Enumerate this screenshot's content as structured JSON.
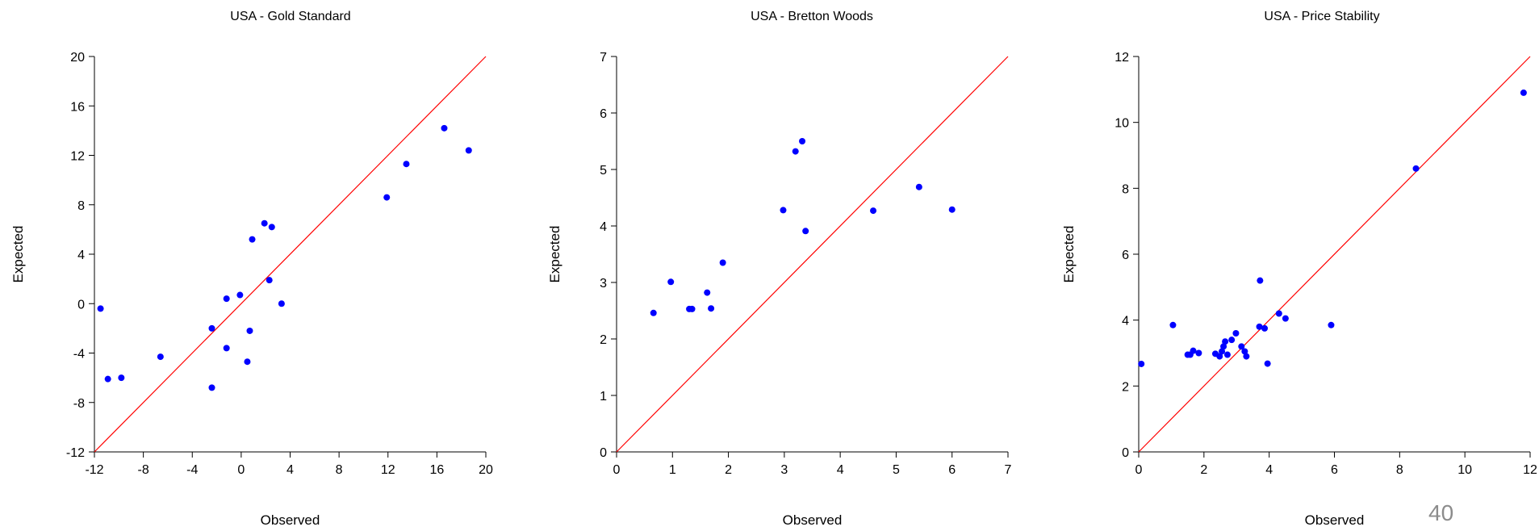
{
  "page_number": "40",
  "colors": {
    "points": "#0000ff",
    "reference_line": "#ff0000",
    "axis": "#000000"
  },
  "chart_data": [
    {
      "type": "scatter",
      "title": "USA - Gold Standard",
      "xlabel": "Observed",
      "ylabel": "Expected",
      "xlim": [
        -12,
        20
      ],
      "ylim": [
        -12,
        20
      ],
      "xticks": [
        -12,
        -8,
        -4,
        0,
        4,
        8,
        12,
        16,
        20
      ],
      "yticks": [
        -12,
        -8,
        -4,
        0,
        4,
        8,
        12,
        16,
        20
      ],
      "xtick_labels": [
        "-12",
        "-8",
        "-4",
        "0",
        "4",
        "8",
        "12",
        "16",
        "20"
      ],
      "ytick_labels": [
        "-12",
        "-8",
        "-4",
        "0",
        "4",
        "8",
        "12",
        "16",
        "20"
      ],
      "grid": false,
      "reference_line": "y = x",
      "points": [
        {
          "x": -11.5,
          "y": -0.4
        },
        {
          "x": -10.9,
          "y": -6.1
        },
        {
          "x": -9.8,
          "y": -6.0
        },
        {
          "x": -6.6,
          "y": -4.3
        },
        {
          "x": -2.4,
          "y": -2.0
        },
        {
          "x": -2.4,
          "y": -6.8
        },
        {
          "x": -1.2,
          "y": 0.4
        },
        {
          "x": -1.2,
          "y": -3.6
        },
        {
          "x": -0.1,
          "y": 0.7
        },
        {
          "x": 0.5,
          "y": -4.7
        },
        {
          "x": 0.7,
          "y": -2.2
        },
        {
          "x": 0.9,
          "y": 5.2
        },
        {
          "x": 1.9,
          "y": 6.5
        },
        {
          "x": 2.3,
          "y": 1.9
        },
        {
          "x": 2.5,
          "y": 6.2
        },
        {
          "x": 3.3,
          "y": 0.0
        },
        {
          "x": 11.9,
          "y": 8.6
        },
        {
          "x": 13.5,
          "y": 11.3
        },
        {
          "x": 16.6,
          "y": 14.2
        },
        {
          "x": 18.6,
          "y": 12.4
        }
      ]
    },
    {
      "type": "scatter",
      "title": "USA - Bretton Woods",
      "xlabel": "Observed",
      "ylabel": "Expected",
      "xlim": [
        0,
        7
      ],
      "ylim": [
        0,
        7
      ],
      "xticks": [
        0,
        1,
        2,
        3,
        4,
        5,
        6,
        7
      ],
      "yticks": [
        0,
        1,
        2,
        3,
        4,
        5,
        6,
        7
      ],
      "xtick_labels": [
        "0",
        "1",
        "2",
        "3",
        "4",
        "5",
        "6",
        "7"
      ],
      "ytick_labels": [
        "0",
        "1",
        "2",
        "3",
        "4",
        "5",
        "6",
        "7"
      ],
      "grid": false,
      "reference_line": "y = x",
      "points": [
        {
          "x": 0.66,
          "y": 2.46
        },
        {
          "x": 0.97,
          "y": 3.01
        },
        {
          "x": 1.3,
          "y": 2.53
        },
        {
          "x": 1.35,
          "y": 2.53
        },
        {
          "x": 1.62,
          "y": 2.82
        },
        {
          "x": 1.69,
          "y": 2.54
        },
        {
          "x": 1.9,
          "y": 3.35
        },
        {
          "x": 2.98,
          "y": 4.28
        },
        {
          "x": 3.2,
          "y": 5.32
        },
        {
          "x": 3.32,
          "y": 5.5
        },
        {
          "x": 3.38,
          "y": 3.91
        },
        {
          "x": 4.59,
          "y": 4.27
        },
        {
          "x": 5.41,
          "y": 4.69
        },
        {
          "x": 6.0,
          "y": 4.29
        }
      ]
    },
    {
      "type": "scatter",
      "title": "USA - Price Stability",
      "xlabel": "Observed",
      "ylabel": "Expected",
      "xlim": [
        0,
        12
      ],
      "ylim": [
        0,
        12
      ],
      "xticks": [
        0,
        2,
        4,
        6,
        8,
        10,
        12
      ],
      "yticks": [
        0,
        2,
        4,
        6,
        8,
        10,
        12
      ],
      "xtick_labels": [
        "0",
        "2",
        "4",
        "6",
        "8",
        "10",
        "12"
      ],
      "ytick_labels": [
        "0",
        "2",
        "4",
        "6",
        "8",
        "10",
        "12"
      ],
      "grid": false,
      "reference_line": "y = x",
      "points": [
        {
          "x": 0.08,
          "y": 2.67
        },
        {
          "x": 1.05,
          "y": 3.85
        },
        {
          "x": 1.5,
          "y": 2.95
        },
        {
          "x": 1.58,
          "y": 2.95
        },
        {
          "x": 1.67,
          "y": 3.07
        },
        {
          "x": 1.84,
          "y": 3.0
        },
        {
          "x": 2.35,
          "y": 2.98
        },
        {
          "x": 2.48,
          "y": 2.9
        },
        {
          "x": 2.55,
          "y": 3.05
        },
        {
          "x": 2.6,
          "y": 3.2
        },
        {
          "x": 2.65,
          "y": 3.35
        },
        {
          "x": 2.72,
          "y": 2.95
        },
        {
          "x": 2.85,
          "y": 3.4
        },
        {
          "x": 2.98,
          "y": 3.6
        },
        {
          "x": 3.15,
          "y": 3.2
        },
        {
          "x": 3.25,
          "y": 3.05
        },
        {
          "x": 3.3,
          "y": 2.9
        },
        {
          "x": 3.7,
          "y": 3.8
        },
        {
          "x": 3.72,
          "y": 5.2
        },
        {
          "x": 3.86,
          "y": 3.75
        },
        {
          "x": 3.95,
          "y": 2.68
        },
        {
          "x": 4.3,
          "y": 4.2
        },
        {
          "x": 4.5,
          "y": 4.05
        },
        {
          "x": 5.9,
          "y": 3.85
        },
        {
          "x": 8.5,
          "y": 8.6
        },
        {
          "x": 11.8,
          "y": 10.9
        }
      ]
    }
  ]
}
